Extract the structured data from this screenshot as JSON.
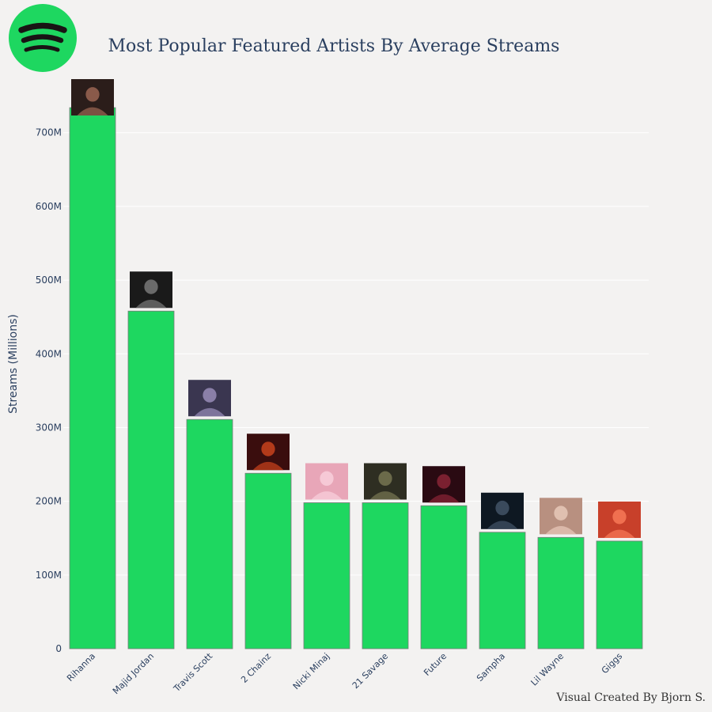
{
  "title": "Most Popular Featured Artists By Average Streams",
  "credit": "Visual Created By Bjorn S.",
  "logo": {
    "icon": "spotify-logo-icon",
    "color": "#1ed760"
  },
  "colors": {
    "bar": "#1ed760",
    "text": "#2a3f5f"
  },
  "chart_data": {
    "type": "bar",
    "title": "Most Popular Featured Artists By Average Streams",
    "xlabel": "",
    "ylabel": "Streams (Millions)",
    "categories": [
      "Rihanna",
      "Majid Jordan",
      "Travis Scott",
      "2 Chainz",
      "Nicki Minaj",
      "21 Savage",
      "Future",
      "Sampha",
      "Lil Wayne",
      "Giggs"
    ],
    "values": [
      734,
      458,
      311,
      238,
      198,
      198,
      194,
      158,
      151,
      146
    ],
    "value_unit": "millions",
    "ylim": [
      0,
      750
    ],
    "yticks": [
      0,
      100,
      200,
      300,
      400,
      500,
      600,
      700
    ],
    "ytick_labels": [
      "0",
      "100M",
      "200M",
      "300M",
      "400M",
      "500M",
      "600M",
      "700M"
    ],
    "grid": true,
    "legend": "none",
    "bar_images": "artist photos above each bar"
  }
}
